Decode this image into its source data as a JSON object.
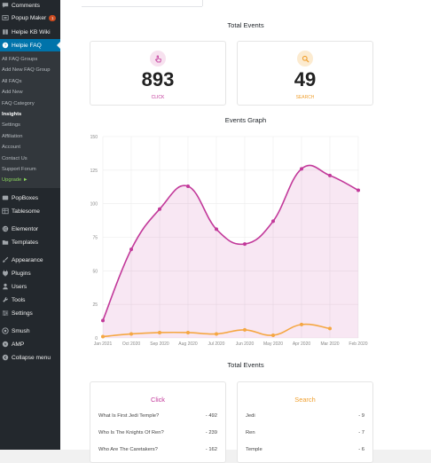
{
  "sidebar": {
    "top_items": [
      {
        "label": "Comments",
        "icon": "comment-icon"
      },
      {
        "label": "Popup Maker",
        "icon": "popup-icon",
        "badge": "1"
      },
      {
        "label": "Helpie KB Wiki",
        "icon": "book-icon"
      },
      {
        "label": "Helpie FAQ",
        "icon": "faq-icon",
        "active": true
      }
    ],
    "submenu": [
      {
        "label": "All FAQ Groups"
      },
      {
        "label": "Add New FAQ Group"
      },
      {
        "label": "All FAQs"
      },
      {
        "label": "Add New"
      },
      {
        "label": "FAQ Category"
      },
      {
        "label": "Insights",
        "current": true
      },
      {
        "label": "Settings"
      },
      {
        "label": "Affiliation"
      },
      {
        "label": "Account"
      },
      {
        "label": "Contact Us"
      },
      {
        "label": "Support Forum"
      },
      {
        "label": "Upgrade ►",
        "upgrade": true
      }
    ],
    "bottom_items": [
      {
        "label": "PopBoxes",
        "icon": "popbox-icon"
      },
      {
        "label": "Tablesome",
        "icon": "table-icon"
      },
      {
        "label": "Elementor",
        "icon": "elementor-icon"
      },
      {
        "label": "Templates",
        "icon": "folder-icon"
      },
      {
        "label": "Appearance",
        "icon": "brush-icon"
      },
      {
        "label": "Plugins",
        "icon": "plugin-icon"
      },
      {
        "label": "Users",
        "icon": "user-icon"
      },
      {
        "label": "Tools",
        "icon": "wrench-icon"
      },
      {
        "label": "Settings",
        "icon": "sliders-icon"
      },
      {
        "label": "Smush",
        "icon": "smush-icon"
      },
      {
        "label": "AMP",
        "icon": "amp-icon"
      },
      {
        "label": "Collapse menu",
        "icon": "collapse-icon"
      }
    ]
  },
  "main": {
    "total_events_title": "Total Events",
    "click_stat": {
      "value": "893",
      "label": "CLICK",
      "icon": "pointer-icon",
      "color": "#c2399a"
    },
    "search_stat": {
      "value": "49",
      "label": "SEARCH",
      "icon": "search-icon",
      "color": "#f0a030"
    },
    "graph_title": "Events Graph",
    "bottom_title": "Total Events",
    "click_list": {
      "title": "Click",
      "rows": [
        {
          "q": "What Is First Jedi Temple?",
          "c": "- 492"
        },
        {
          "q": "Who Is The Knights Of Ren?",
          "c": "- 239"
        },
        {
          "q": "Who Are The Caretakers?",
          "c": "- 162"
        }
      ]
    },
    "search_list": {
      "title": "Search",
      "rows": [
        {
          "q": "Jedi",
          "c": "- 9"
        },
        {
          "q": "Ren",
          "c": "- 7"
        },
        {
          "q": "Temple",
          "c": "- 6"
        }
      ]
    }
  },
  "chart_data": {
    "type": "line",
    "categories": [
      "Jan 2021",
      "Oct 2020",
      "Sep 2020",
      "Aug 2020",
      "Jul 2020",
      "Jun 2020",
      "May 2020",
      "Apr 2020",
      "Mar 2020",
      "Feb 2020"
    ],
    "y_ticks": [
      "0",
      "25",
      "50",
      "75",
      "100",
      "125",
      "150"
    ],
    "ylim": [
      0,
      150
    ],
    "grid": true,
    "series": [
      {
        "values": [
          13,
          66,
          96,
          113,
          81,
          70,
          87,
          126,
          121,
          110
        ],
        "color": "#c2399a",
        "fill": true
      },
      {
        "values": [
          1,
          3,
          4,
          4,
          3,
          6,
          2,
          10,
          7,
          null
        ],
        "color": "#f5a742",
        "fill": false
      }
    ]
  }
}
